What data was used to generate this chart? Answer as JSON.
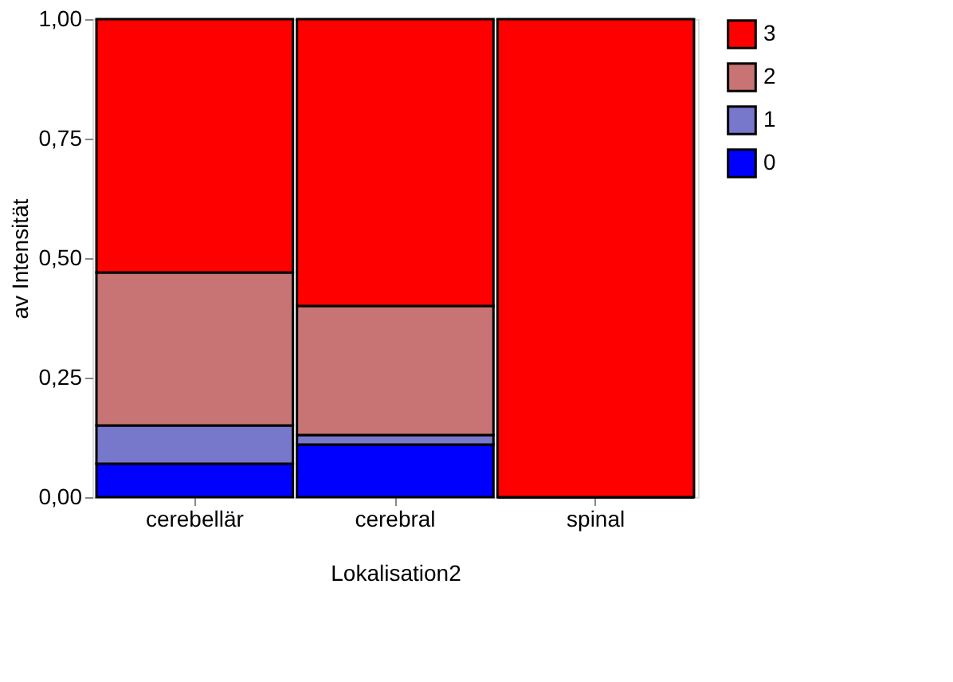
{
  "chart_data": {
    "type": "bar",
    "stacked": true,
    "categories": [
      "cerebellär",
      "cerebral",
      "spinal"
    ],
    "xlabel": "Lokalisation2",
    "ylabel": "av Intensität",
    "series": [
      {
        "name": "0",
        "color": "#0000ff",
        "values": [
          0.07,
          0.11,
          0
        ]
      },
      {
        "name": "1",
        "color": "#7777cc",
        "values": [
          0.08,
          0.02,
          0
        ]
      },
      {
        "name": "2",
        "color": "#c87474",
        "values": [
          0.32,
          0.27,
          0
        ]
      },
      {
        "name": "3",
        "color": "#ff0000",
        "values": [
          0.53,
          0.6,
          1
        ]
      }
    ],
    "ylim": [
      0,
      1
    ],
    "yticks": [
      {
        "value": 0,
        "label": "0,00"
      },
      {
        "value": 0.25,
        "label": "0,25"
      },
      {
        "value": 0.5,
        "label": "0,50"
      },
      {
        "value": 0.75,
        "label": "0,75"
      },
      {
        "value": 1,
        "label": "1,00"
      }
    ],
    "grid": false,
    "legend": "right"
  }
}
